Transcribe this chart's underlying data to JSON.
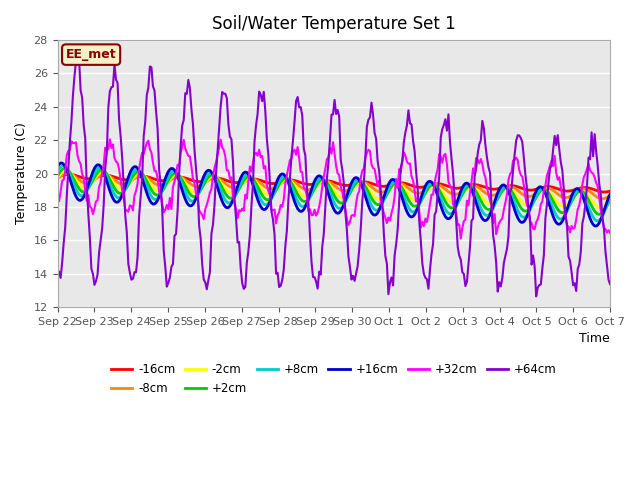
{
  "title": "Soil/Water Temperature Set 1",
  "xlabel": "Time",
  "ylabel": "Temperature (C)",
  "ylim": [
    12,
    28
  ],
  "yticks": [
    12,
    14,
    16,
    18,
    20,
    22,
    24,
    26,
    28
  ],
  "background_color": "#e8e8e8",
  "annotation_text": "EE_met",
  "annotation_bg": "#f5f0c8",
  "annotation_border": "#8b0000",
  "series": {
    "-16cm": {
      "color": "#ff0000",
      "linewidth": 2.0
    },
    "-8cm": {
      "color": "#ff8800",
      "linewidth": 2.0
    },
    "-2cm": {
      "color": "#ffff00",
      "linewidth": 2.0
    },
    "+2cm": {
      "color": "#00cc00",
      "linewidth": 2.0
    },
    "+8cm": {
      "color": "#00cccc",
      "linewidth": 2.0
    },
    "+16cm": {
      "color": "#0000cc",
      "linewidth": 2.0
    },
    "+32cm": {
      "color": "#ff00ff",
      "linewidth": 1.5
    },
    "+64cm": {
      "color": "#8800cc",
      "linewidth": 1.5
    }
  },
  "xtick_labels": [
    "Sep 22",
    "Sep 23",
    "Sep 24",
    "Sep 25",
    "Sep 26",
    "Sep 27",
    "Sep 28",
    "Sep 29",
    "Sep 30",
    "Oct 1",
    "Oct 2",
    "Oct 3",
    "Oct 4",
    "Oct 5",
    "Oct 6",
    "Oct 7"
  ],
  "n_days": 15
}
